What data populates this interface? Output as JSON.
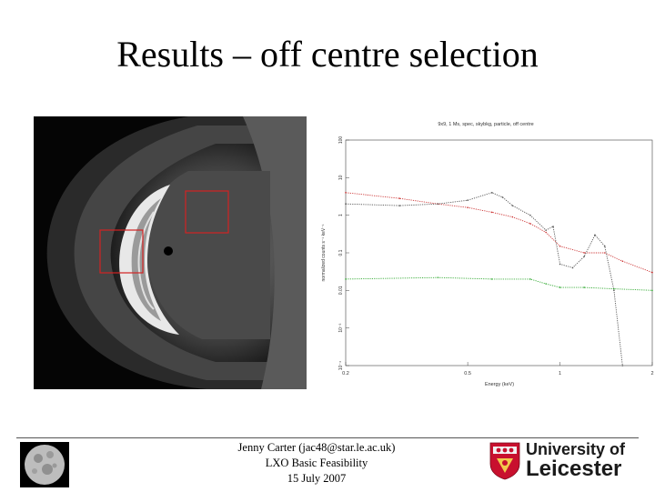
{
  "slide": {
    "title": "Results – off centre selection"
  },
  "plot": {
    "title": "9x9, 1 Ms, spec, skybkg, particle, off centre",
    "xlabel": "Energy (keV)",
    "ylabel": "normalized counts s⁻¹ keV⁻¹",
    "yticks": [
      "100",
      "10",
      "1",
      "0.1",
      "0.01",
      "10⁻³",
      "10⁻⁴"
    ],
    "xticks": [
      "0.2",
      "0.5",
      "1",
      "2"
    ]
  },
  "footer": {
    "line1": "Jenny Carter (jac48@star.le.ac.uk)",
    "line2": "LXO Basic Feasibility",
    "line3": "15 July 2007"
  },
  "logo": {
    "line1": "University of",
    "line2": "Leicester",
    "colors": {
      "shield_red": "#c8102e",
      "text": "#1a1a1a"
    }
  },
  "chart_data": {
    "type": "line",
    "title": "9x9, 1 Ms, spec, skybkg, particle, off centre",
    "xlabel": "Energy (keV)",
    "ylabel": "normalized counts s⁻¹ keV⁻¹",
    "xscale": "log",
    "yscale": "log",
    "xlim": [
      0.2,
      2
    ],
    "ylim": [
      0.0001,
      100
    ],
    "series": [
      {
        "color": "#cc3333",
        "x": [
          0.2,
          0.3,
          0.4,
          0.5,
          0.6,
          0.7,
          0.8,
          0.9,
          1.0,
          1.2,
          1.4,
          1.6,
          2.0
        ],
        "y": [
          4,
          2.8,
          2.0,
          1.6,
          1.2,
          0.9,
          0.6,
          0.35,
          0.15,
          0.1,
          0.1,
          0.06,
          0.03
        ]
      },
      {
        "color": "#555555",
        "x": [
          0.2,
          0.3,
          0.4,
          0.5,
          0.6,
          0.65,
          0.7,
          0.8,
          0.9,
          0.95,
          1.0,
          1.1,
          1.2,
          1.3,
          1.4,
          1.5,
          1.6
        ],
        "y": [
          2.0,
          1.8,
          2.0,
          2.5,
          4.0,
          3.0,
          1.8,
          1.0,
          0.4,
          0.5,
          0.05,
          0.04,
          0.08,
          0.3,
          0.15,
          0.01,
          0.0001
        ]
      },
      {
        "color": "#33aa33",
        "x": [
          0.2,
          0.4,
          0.6,
          0.8,
          0.9,
          1.0,
          1.2,
          1.5,
          2.0
        ],
        "y": [
          0.02,
          0.022,
          0.02,
          0.02,
          0.015,
          0.012,
          0.012,
          0.011,
          0.01
        ]
      }
    ]
  }
}
